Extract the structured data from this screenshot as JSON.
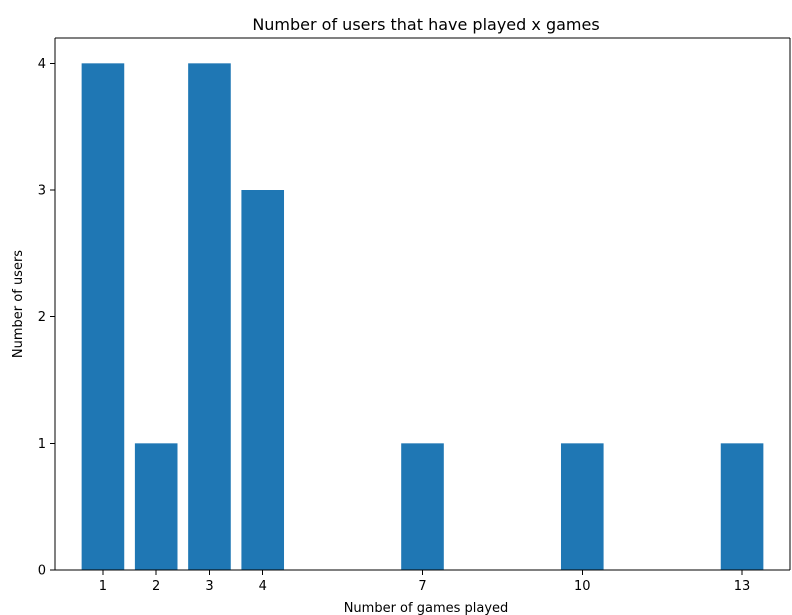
{
  "chart_data": {
    "type": "bar",
    "title": "Number of users that have played x games",
    "xlabel": "Number of games played",
    "ylabel": "Number of users",
    "x": [
      1,
      2,
      3,
      4,
      7,
      10,
      13
    ],
    "values": [
      4,
      1,
      4,
      3,
      1,
      1,
      1
    ],
    "xticks": [
      1,
      2,
      3,
      4,
      7,
      10,
      13
    ],
    "yticks": [
      0,
      1,
      2,
      3,
      4
    ],
    "xlim": [
      0.1,
      13.9
    ],
    "ylim": [
      0,
      4.2
    ],
    "grid": false,
    "bar_color": "#1f77b4"
  }
}
